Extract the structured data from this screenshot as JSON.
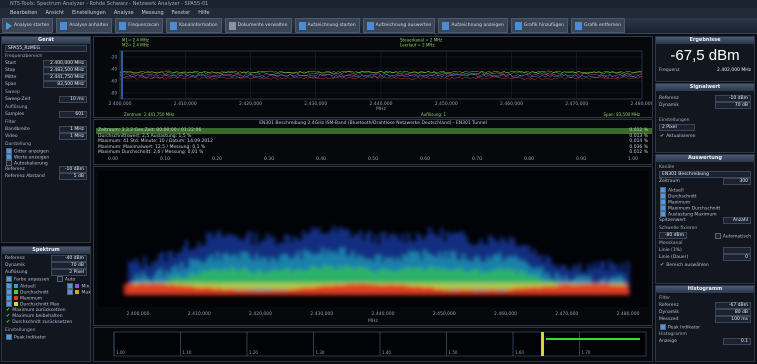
{
  "window": {
    "title": "NTS-Tools: Spectrum Analyzer - Rohde Schwarz - Netzwerk Analyzer - SPA55-01"
  },
  "menu": [
    "Bearbeiten",
    "Ansicht",
    "Einstellungen",
    "Analyse",
    "Messung",
    "Fenster",
    "Hilfe"
  ],
  "toolbar": [
    {
      "label": "Analyse starten",
      "icon": "play-icon"
    },
    {
      "label": "Analyse anhalten",
      "icon": "pause-icon"
    },
    {
      "label": "Frequenzscan",
      "icon": "scan-icon"
    },
    {
      "label": "Kanalinformation",
      "icon": "info-icon"
    },
    {
      "label": "Dokumente verwalten",
      "icon": "document-icon"
    },
    {
      "label": "Aufzeichnung starten",
      "icon": "record-icon"
    },
    {
      "label": "Aufzeichnung auswerten",
      "icon": "evaluate-icon"
    },
    {
      "label": "Aufzeichnung anzeigen",
      "icon": "view-icon"
    },
    {
      "label": "Grafik hinzufügen",
      "icon": "add-chart-icon"
    },
    {
      "label": "Grafik entfernen",
      "icon": "remove-chart-icon"
    }
  ],
  "left": {
    "device": {
      "title": "Gerät",
      "value": "SPA55_RzMEG",
      "freq_title": "Frequenzbereich",
      "rows": [
        {
          "label": "Start",
          "value": "2.400,000 MHz"
        },
        {
          "label": "Stop",
          "value": "2.483,500 MHz"
        },
        {
          "label": "Mitte",
          "value": "2.441,750 MHz"
        },
        {
          "label": "Span",
          "value": "83,500 MHz"
        }
      ],
      "sweep_title": "Sweep",
      "sweep_label": "Sweep-Zeit",
      "sweep_value": "10 ms",
      "res_title": "Auflösung",
      "res_label": "Samples",
      "res_value": "601",
      "filter_title": "Filter",
      "filter_rows": [
        {
          "label": "Bandbreite",
          "value": "1 MHz"
        },
        {
          "label": "Video",
          "value": "1 MHz"
        }
      ],
      "display_title": "Darstellung",
      "display_checks": [
        {
          "label": "Gitter anzeigen",
          "on": true
        },
        {
          "label": "Werte anzeigen",
          "on": true
        },
        {
          "label": "Autoskalierung",
          "on": false
        }
      ],
      "ref_rows": [
        {
          "label": "Referenz",
          "value": "-10 dBm"
        },
        {
          "label": "Referenz Abstand",
          "value": "5 dB"
        }
      ]
    },
    "spectrum": {
      "title": "Spektrum",
      "rows": [
        {
          "label": "Referenz",
          "value": "-40 dBm"
        },
        {
          "label": "Dynamik",
          "value": "70 dB"
        },
        {
          "label": "Auflösung",
          "value": "2 Pixel"
        }
      ],
      "auto_label": "Farbe anpassen",
      "auto2_label": "Auto",
      "legend": [
        {
          "label": "Aktuell",
          "color": "#3a9ad6"
        },
        {
          "label": "Durchschnitt",
          "color": "#3ad63a"
        },
        {
          "label": "Maximum",
          "color": "#d63a3a"
        },
        {
          "label": "Durchschnitt Max",
          "color": "#d6d63a"
        }
      ],
      "legend_right": [
        {
          "label": "Min",
          "color": "#8a5ad6"
        },
        {
          "label": "Max",
          "color": "#d6a03a"
        }
      ],
      "checks": [
        "Maximum zurücksetzen",
        "Maximum beibehalten",
        "Durchschnitt zurücksetzen"
      ],
      "foot_title": "Einstellungen",
      "foot_check": "Peak Indikator"
    }
  },
  "top_chart": {
    "markers_left": [
      "M1= 2.4 MHz",
      "M2= 2.4 MHz"
    ],
    "markers_right": [
      "Steuerkanal = 2 MHz",
      "Leerlauf = 2 MHz"
    ],
    "yticks": [
      "-20",
      "-40",
      "-60",
      "-80"
    ],
    "xticks": [
      "2.400,000",
      "2.410,000",
      "2.420,000",
      "2.430,000",
      "2.440,000",
      "2.450,000",
      "2.460,000",
      "2.470,000",
      "2.480,000"
    ],
    "xlabel": "MHz",
    "foot_left": "Zentrum: 2.441,750 MHz",
    "foot_center": "Auflösung: 1",
    "foot_right": "Span: 83,500 MHz"
  },
  "middle": {
    "title": "EN301 Beschreibung 2.4GHz ISM-Band (Bluetooth/Drahtlose Netzwerke Deutschland) - EN301 Tunnel",
    "lines": [
      "Zeitraum: 3.3.2 Ges.Zeit: 00:00:00 / 01:22:06",
      "Durchschnittswert: 2,5 Auslastung: 1,5 %",
      "Maximum: 41 Std. Minute: 10 / Datum: 14.09.2012",
      "Maximum: Maximalwert: 12,5 / Messung: 0,1 %",
      "Maximum Durchschnitt: 2,6 / Messung: 0,01 %"
    ],
    "right_values": [
      "0.012 %",
      "0.013 %",
      "0.014 %",
      "0.036 %",
      "0.012 %"
    ],
    "xticks": [
      "0.00",
      "0.10",
      "0.20",
      "0.30",
      "0.40",
      "0.50",
      "0.60",
      "0.70",
      "0.80",
      "0.90",
      "1.00"
    ]
  },
  "waterfall": {
    "xticks": [
      "2.400,000",
      "2.410,000",
      "2.420,000",
      "2.430,000",
      "2.440,000",
      "2.450,000",
      "2.460,000",
      "2.470,000",
      "2.480,000"
    ],
    "xlabel": "MHz"
  },
  "timeline": {
    "labels": [
      "1.00",
      "1.10",
      "1.20",
      "1.30",
      "1.40",
      "1.50",
      "1.60",
      "1.70"
    ]
  },
  "right": {
    "ergebnis": {
      "title": "Ergebnisse",
      "big_value": "-67,5 dBm",
      "freq_label": "Frequenz",
      "freq_value": "2.402,000 MHz"
    },
    "signal": {
      "title": "Signalwert",
      "rows": [
        {
          "label": "Referenz",
          "value": "-10 dBm"
        },
        {
          "label": "Dynamik",
          "value": "70 dB"
        }
      ],
      "display_label": "Einstellungen",
      "display_value": "2 Pixel",
      "check_label": "Aktualisieren"
    },
    "analysis": {
      "title": "Auswertung",
      "sub1": "Kanäle",
      "dropdown": "EN301 Beschreibung",
      "row_label": "Zeitraum",
      "row_value": "300",
      "checks": [
        "Aktuell",
        "Durchschnitt",
        "Maximum",
        "Maximum Durchschnitt",
        "Auslastung Maximum"
      ],
      "select_label": "Spitzenwert",
      "select_value": "Anzahl",
      "threshold_label": "Schwelle fixieren",
      "threshold_value": "-80 dBm",
      "threshold_check": "Automatisch",
      "line1_label": "Messkanal",
      "line2_label": "Linie (1%)",
      "line3_label": "Linie (Dauer)",
      "line3_value": "0",
      "check_final": "Bereich auswählen"
    },
    "histogram": {
      "title": "Histogramm",
      "sub": "Filter",
      "rows": [
        {
          "label": "Referenz",
          "value": "-67 dBm"
        },
        {
          "label": "Dynamik",
          "value": "80 dB"
        },
        {
          "label": "Messzeit",
          "value": "100 ms"
        }
      ],
      "check": "Peak Indikator",
      "footer": "Histogramm",
      "footer_row_label": "Anzeige",
      "footer_row_value": "0.1"
    }
  }
}
